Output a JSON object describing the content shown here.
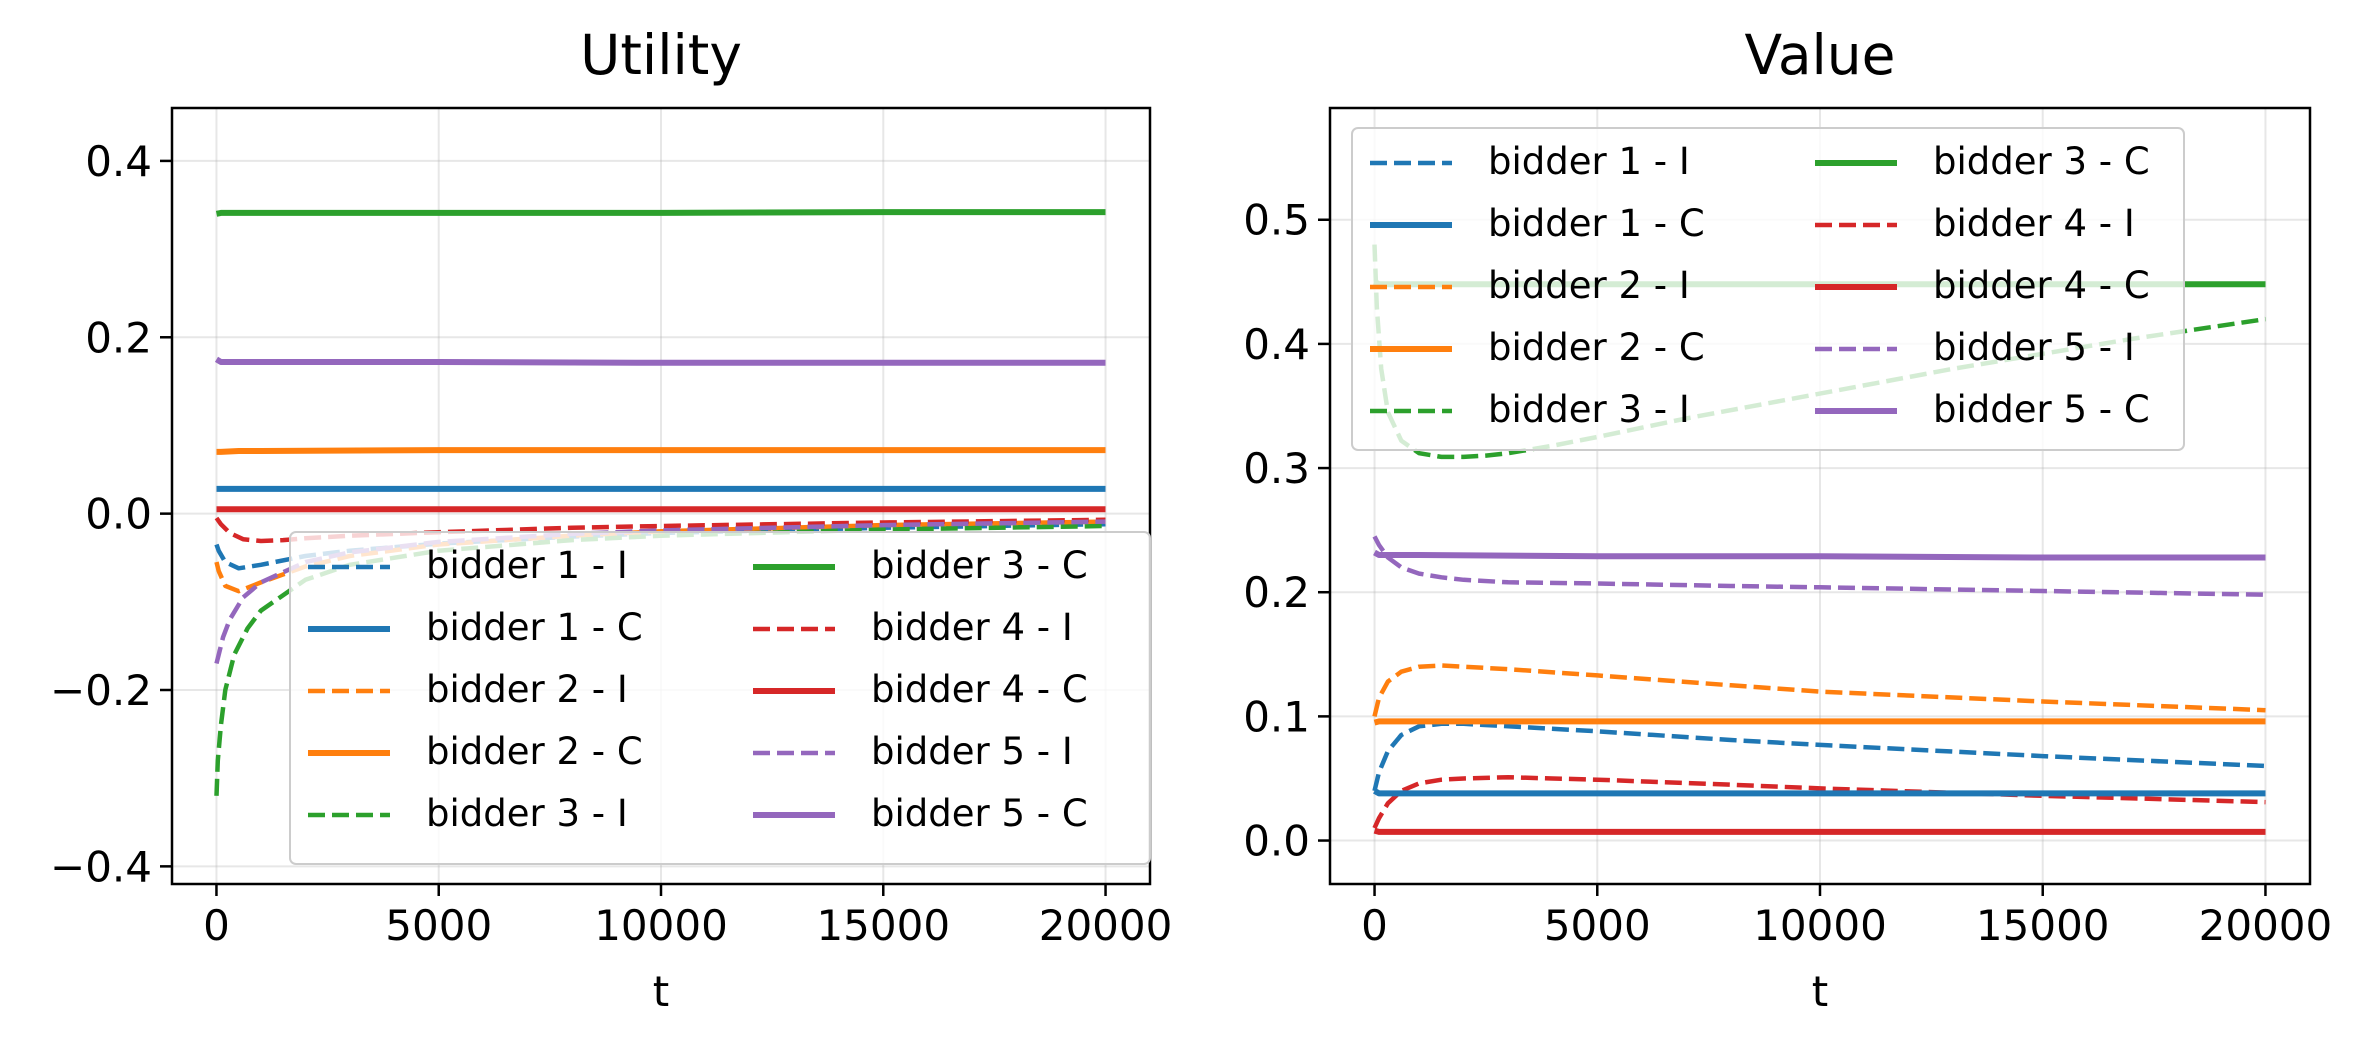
{
  "chart_data": [
    {
      "type": "line",
      "title": "Utility",
      "xlabel": "t",
      "ylabel": "",
      "xlim": [
        -1000,
        21000
      ],
      "ylim": [
        -0.42,
        0.46
      ],
      "xticks": [
        0,
        5000,
        10000,
        15000,
        20000
      ],
      "xtick_labels": [
        "0",
        "5000",
        "10000",
        "15000",
        "20000"
      ],
      "yticks": [
        -0.4,
        -0.2,
        0.0,
        0.2,
        0.4
      ],
      "ytick_labels": [
        "−0.4",
        "−0.2",
        "0.0",
        "0.2",
        "0.4"
      ],
      "grid": true,
      "legend_location": "lower right",
      "legend_columns": 2,
      "series": [
        {
          "name": "bidder 1 - I",
          "color": "#1f77b4",
          "style": "dashed",
          "x": [
            0,
            50,
            200,
            500,
            1000,
            2000,
            3000,
            5000,
            8000,
            10000,
            15000,
            20000
          ],
          "values": [
            -0.035,
            -0.042,
            -0.055,
            -0.062,
            -0.058,
            -0.048,
            -0.042,
            -0.034,
            -0.026,
            -0.022,
            -0.016,
            -0.012
          ]
        },
        {
          "name": "bidder 1 - C",
          "color": "#1f77b4",
          "style": "solid",
          "x": [
            0,
            100,
            500,
            1000,
            5000,
            10000,
            15000,
            20000
          ],
          "values": [
            0.028,
            0.028,
            0.028,
            0.028,
            0.028,
            0.028,
            0.028,
            0.028
          ]
        },
        {
          "name": "bidder 2 - I",
          "color": "#ff7f0e",
          "style": "dashed",
          "x": [
            0,
            50,
            200,
            500,
            1000,
            2000,
            3000,
            5000,
            8000,
            10000,
            15000,
            20000
          ],
          "values": [
            -0.055,
            -0.065,
            -0.082,
            -0.088,
            -0.078,
            -0.06,
            -0.048,
            -0.035,
            -0.025,
            -0.02,
            -0.013,
            -0.009
          ]
        },
        {
          "name": "bidder 2 - C",
          "color": "#ff7f0e",
          "style": "solid",
          "x": [
            0,
            100,
            500,
            1000,
            5000,
            10000,
            15000,
            20000
          ],
          "values": [
            0.07,
            0.07,
            0.071,
            0.071,
            0.072,
            0.072,
            0.072,
            0.072
          ]
        },
        {
          "name": "bidder 3 - I",
          "color": "#2ca02c",
          "style": "dashed",
          "x": [
            0,
            30,
            100,
            200,
            400,
            700,
            1000,
            2000,
            3000,
            5000,
            8000,
            10000,
            15000,
            20000
          ],
          "values": [
            -0.32,
            -0.28,
            -0.24,
            -0.2,
            -0.16,
            -0.13,
            -0.11,
            -0.075,
            -0.058,
            -0.042,
            -0.03,
            -0.025,
            -0.018,
            -0.014
          ]
        },
        {
          "name": "bidder 3 - C",
          "color": "#2ca02c",
          "style": "solid",
          "x": [
            0,
            100,
            500,
            1000,
            5000,
            10000,
            15000,
            20000
          ],
          "values": [
            0.34,
            0.341,
            0.341,
            0.341,
            0.341,
            0.341,
            0.342,
            0.342
          ]
        },
        {
          "name": "bidder 4 - I",
          "color": "#d62728",
          "style": "dashed",
          "x": [
            0,
            100,
            300,
            600,
            1000,
            1500,
            2000,
            3000,
            5000,
            8000,
            10000,
            15000,
            20000
          ],
          "values": [
            -0.005,
            -0.012,
            -0.022,
            -0.029,
            -0.031,
            -0.03,
            -0.028,
            -0.025,
            -0.021,
            -0.016,
            -0.014,
            -0.01,
            -0.007
          ]
        },
        {
          "name": "bidder 4 - C",
          "color": "#d62728",
          "style": "solid",
          "x": [
            0,
            100,
            500,
            1000,
            5000,
            10000,
            15000,
            20000
          ],
          "values": [
            0.005,
            0.005,
            0.005,
            0.005,
            0.005,
            0.005,
            0.005,
            0.005
          ]
        },
        {
          "name": "bidder 5 - I",
          "color": "#9467bd",
          "style": "dashed",
          "x": [
            0,
            50,
            150,
            300,
            600,
            1000,
            2000,
            3000,
            5000,
            8000,
            10000,
            15000,
            20000
          ],
          "values": [
            -0.17,
            -0.16,
            -0.14,
            -0.12,
            -0.095,
            -0.078,
            -0.055,
            -0.044,
            -0.032,
            -0.023,
            -0.019,
            -0.013,
            -0.009
          ]
        },
        {
          "name": "bidder 5 - C",
          "color": "#9467bd",
          "style": "solid",
          "x": [
            0,
            100,
            500,
            1000,
            5000,
            10000,
            15000,
            20000
          ],
          "values": [
            0.175,
            0.172,
            0.172,
            0.172,
            0.172,
            0.171,
            0.171,
            0.171
          ]
        }
      ]
    },
    {
      "type": "line",
      "title": "Value",
      "xlabel": "t",
      "ylabel": "",
      "xlim": [
        -1000,
        21000
      ],
      "ylim": [
        -0.035,
        0.59
      ],
      "xticks": [
        0,
        5000,
        10000,
        15000,
        20000
      ],
      "xtick_labels": [
        "0",
        "5000",
        "10000",
        "15000",
        "20000"
      ],
      "yticks": [
        0.0,
        0.1,
        0.2,
        0.3,
        0.4,
        0.5
      ],
      "ytick_labels": [
        "0.0",
        "0.1",
        "0.2",
        "0.3",
        "0.4",
        "0.5"
      ],
      "grid": true,
      "legend_location": "upper left",
      "legend_columns": 2,
      "series": [
        {
          "name": "bidder 1 - I",
          "color": "#1f77b4",
          "style": "dashed",
          "x": [
            0,
            100,
            300,
            600,
            1000,
            1500,
            2000,
            3000,
            5000,
            8000,
            10000,
            15000,
            20000
          ],
          "values": [
            0.04,
            0.055,
            0.072,
            0.085,
            0.092,
            0.094,
            0.094,
            0.092,
            0.088,
            0.081,
            0.077,
            0.068,
            0.06
          ]
        },
        {
          "name": "bidder 1 - C",
          "color": "#1f77b4",
          "style": "solid",
          "x": [
            0,
            100,
            500,
            1000,
            5000,
            10000,
            15000,
            20000
          ],
          "values": [
            0.04,
            0.038,
            0.038,
            0.038,
            0.038,
            0.038,
            0.038,
            0.038
          ]
        },
        {
          "name": "bidder 2 - I",
          "color": "#ff7f0e",
          "style": "dashed",
          "x": [
            0,
            100,
            300,
            600,
            1000,
            1500,
            2000,
            3000,
            5000,
            8000,
            10000,
            15000,
            20000
          ],
          "values": [
            0.1,
            0.115,
            0.128,
            0.136,
            0.14,
            0.141,
            0.14,
            0.138,
            0.133,
            0.125,
            0.12,
            0.112,
            0.105
          ]
        },
        {
          "name": "bidder 2 - C",
          "color": "#ff7f0e",
          "style": "solid",
          "x": [
            0,
            100,
            500,
            1000,
            5000,
            10000,
            15000,
            20000
          ],
          "values": [
            0.095,
            0.096,
            0.096,
            0.096,
            0.096,
            0.096,
            0.096,
            0.096
          ]
        },
        {
          "name": "bidder 3 - I",
          "color": "#2ca02c",
          "style": "dashed",
          "x": [
            0,
            50,
            150,
            300,
            600,
            1000,
            1500,
            2000,
            2500,
            3000,
            4000,
            5000,
            7000,
            10000,
            13000,
            15000,
            17000,
            20000
          ],
          "values": [
            0.48,
            0.43,
            0.38,
            0.345,
            0.322,
            0.312,
            0.309,
            0.309,
            0.31,
            0.312,
            0.318,
            0.325,
            0.34,
            0.36,
            0.38,
            0.392,
            0.404,
            0.42
          ]
        },
        {
          "name": "bidder 3 - C",
          "color": "#2ca02c",
          "style": "solid",
          "x": [
            0,
            100,
            500,
            1000,
            5000,
            10000,
            15000,
            20000
          ],
          "values": [
            0.45,
            0.448,
            0.448,
            0.448,
            0.448,
            0.448,
            0.448,
            0.448
          ]
        },
        {
          "name": "bidder 4 - I",
          "color": "#d62728",
          "style": "dashed",
          "x": [
            0,
            100,
            300,
            600,
            1000,
            1500,
            2000,
            3000,
            4000,
            5000,
            8000,
            10000,
            15000,
            20000
          ],
          "values": [
            0.01,
            0.018,
            0.03,
            0.04,
            0.046,
            0.049,
            0.05,
            0.051,
            0.05,
            0.049,
            0.045,
            0.042,
            0.036,
            0.031
          ]
        },
        {
          "name": "bidder 4 - C",
          "color": "#d62728",
          "style": "solid",
          "x": [
            0,
            100,
            500,
            1000,
            5000,
            10000,
            15000,
            20000
          ],
          "values": [
            0.008,
            0.007,
            0.007,
            0.007,
            0.007,
            0.007,
            0.007,
            0.007
          ]
        },
        {
          "name": "bidder 5 - I",
          "color": "#9467bd",
          "style": "dashed",
          "x": [
            0,
            100,
            300,
            600,
            1000,
            1500,
            2000,
            3000,
            5000,
            8000,
            10000,
            15000,
            20000
          ],
          "values": [
            0.245,
            0.238,
            0.228,
            0.22,
            0.215,
            0.212,
            0.21,
            0.208,
            0.207,
            0.205,
            0.204,
            0.201,
            0.198
          ]
        },
        {
          "name": "bidder 5 - C",
          "color": "#9467bd",
          "style": "solid",
          "x": [
            0,
            100,
            500,
            1000,
            5000,
            10000,
            15000,
            20000
          ],
          "values": [
            0.232,
            0.23,
            0.23,
            0.23,
            0.229,
            0.229,
            0.228,
            0.228
          ]
        }
      ]
    }
  ]
}
